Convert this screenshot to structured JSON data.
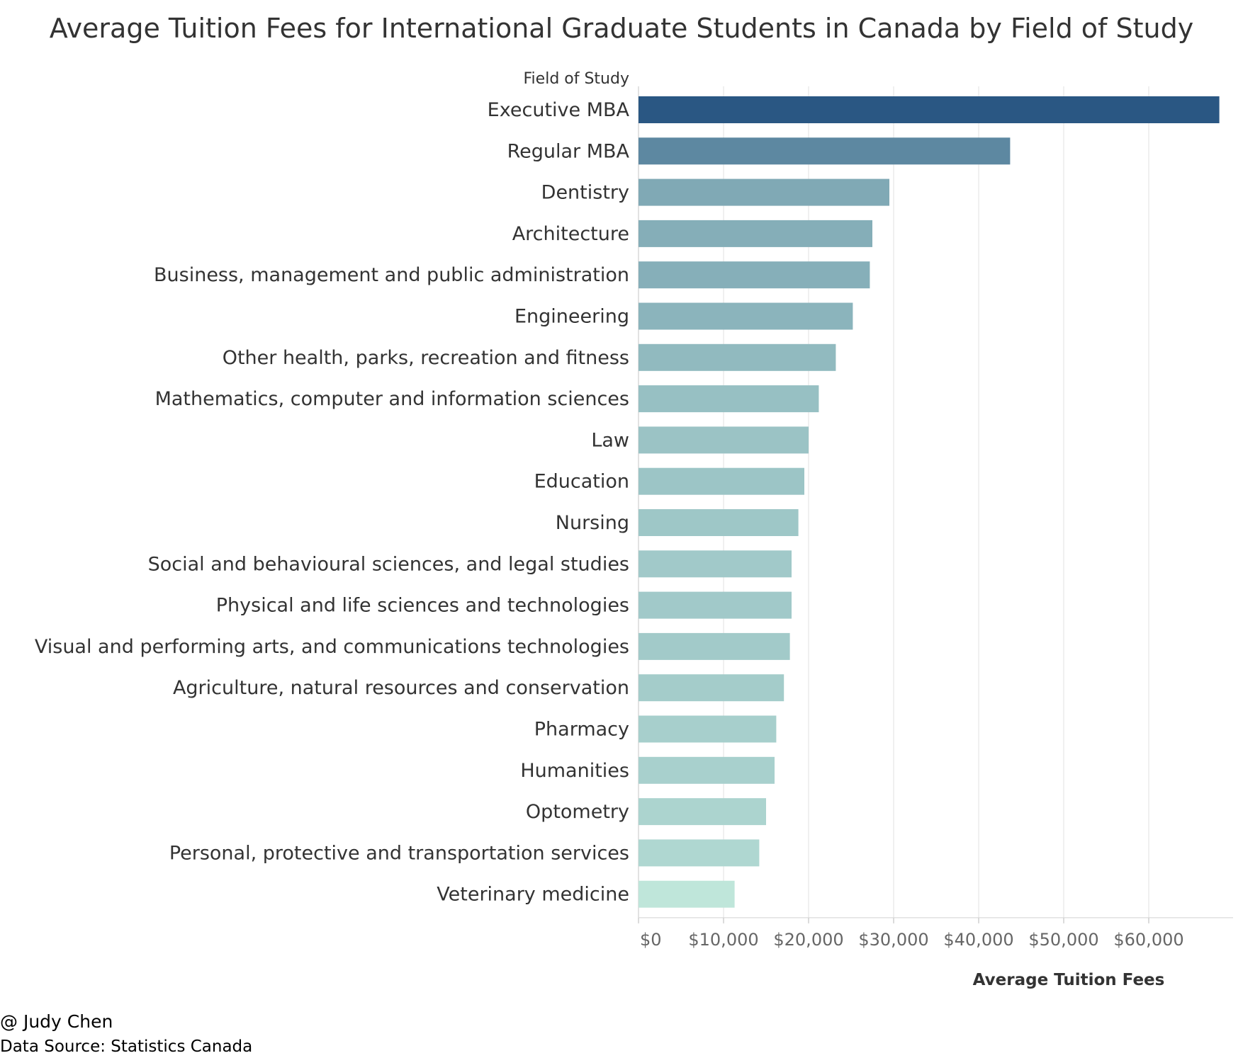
{
  "chart_data": {
    "type": "bar",
    "orientation": "horizontal",
    "title": "Average Tuition Fees for International Graduate Students in Canada by Field of Study",
    "category_header": "Field of Study",
    "xlabel": "Average Tuition Fees",
    "ylabel": "Field of Study",
    "xlim": [
      0,
      70000
    ],
    "x_ticks": [
      0,
      10000,
      20000,
      30000,
      40000,
      50000,
      60000
    ],
    "x_tick_labels": [
      "$0",
      "$10,000",
      "$20,000",
      "$30,000",
      "$40,000",
      "$50,000",
      "$60,000"
    ],
    "grid": "vertical",
    "legend": "none",
    "categories": [
      "Executive MBA",
      "Regular MBA",
      "Dentistry",
      "Architecture",
      "Business, management and public administration",
      "Engineering",
      "Other health, parks, recreation and fitness",
      "Mathematics, computer and information sciences",
      "Law",
      "Education",
      "Nursing",
      "Social and behavioural sciences, and legal studies",
      "Physical and life sciences and technologies",
      "Visual and performing arts, and communications technologies",
      "Agriculture, natural resources and conservation",
      "Pharmacy",
      "Humanities",
      "Optometry",
      "Personal, protective and transportation services",
      "Veterinary medicine"
    ],
    "values": [
      68300,
      43700,
      29500,
      27500,
      27200,
      25200,
      23200,
      21200,
      20000,
      19500,
      18800,
      18000,
      18000,
      17800,
      17100,
      16200,
      16000,
      15000,
      14200,
      11300
    ],
    "color_scale": {
      "low": "#bfe6da",
      "high": "#2a5783"
    }
  },
  "footer": {
    "credit": "@ Judy Chen",
    "source": "Data Source: Statistics Canada"
  }
}
